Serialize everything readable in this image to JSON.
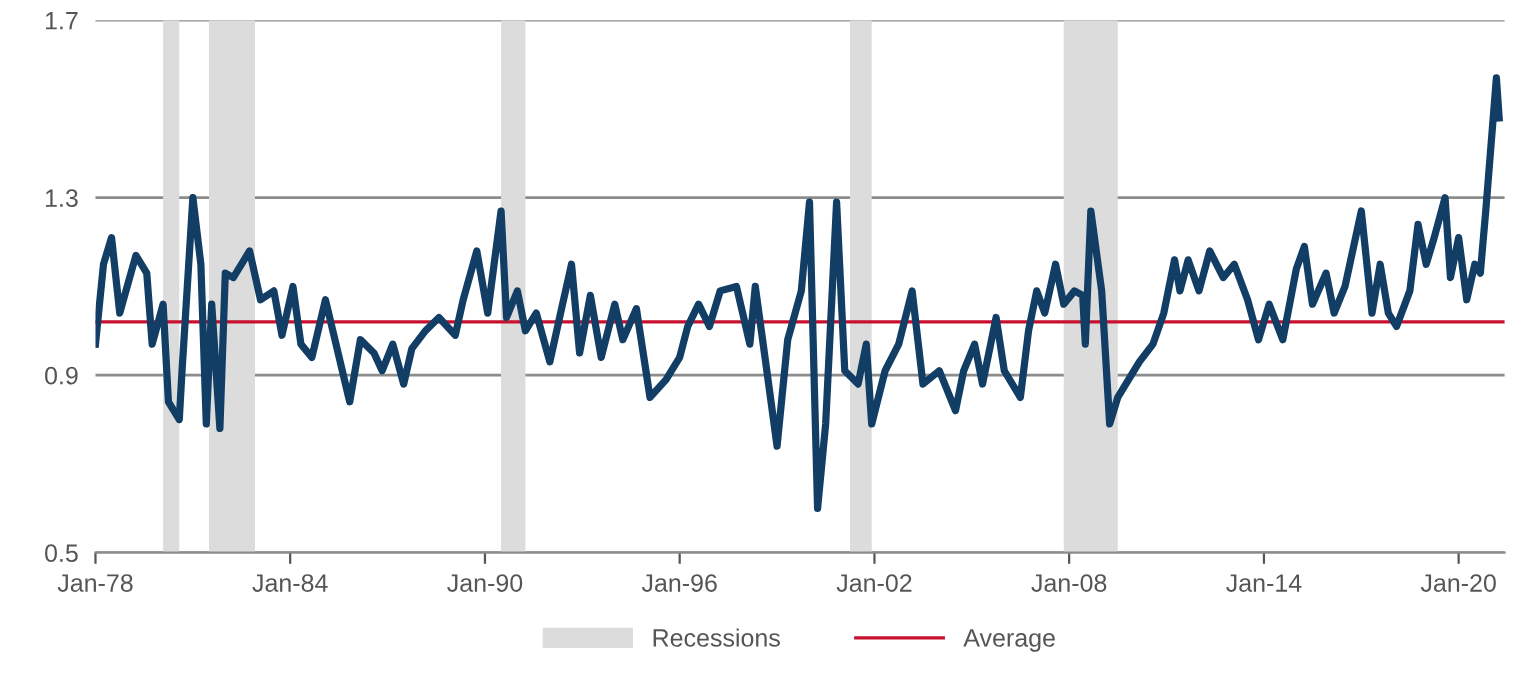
{
  "chart_data": {
    "type": "line",
    "x": [
      "1978-01",
      "1978-04",
      "1978-07",
      "1978-10",
      "1979-04",
      "1979-08",
      "1979-10",
      "1980-02",
      "1980-04",
      "1980-08",
      "1980-09",
      "1981-01",
      "1981-04",
      "1981-06",
      "1981-08",
      "1981-11",
      "1982-01",
      "1982-04",
      "1982-10",
      "1983-02",
      "1983-07",
      "1983-10",
      "1984-02",
      "1984-05",
      "1984-09",
      "1985-02",
      "1985-11",
      "1986-03",
      "1986-08",
      "1986-11",
      "1987-03",
      "1987-07",
      "1987-10",
      "1988-03",
      "1988-08",
      "1989-02",
      "1989-05",
      "1989-10",
      "1990-02",
      "1990-07",
      "1990-09",
      "1991-01",
      "1991-04",
      "1991-08",
      "1992-01",
      "1992-05",
      "1992-09",
      "1992-12",
      "1993-04",
      "1993-08",
      "1994-01",
      "1994-04",
      "1994-09",
      "1995-02",
      "1995-08",
      "1996-01",
      "1996-04",
      "1996-08",
      "1996-12",
      "1997-04",
      "1997-10",
      "1998-03",
      "1998-05",
      "1998-09",
      "1999-01",
      "1999-05",
      "1999-10",
      "2000-01",
      "2000-04",
      "2000-07",
      "2000-11",
      "2001-02",
      "2001-07",
      "2001-10",
      "2001-12",
      "2002-05",
      "2002-10",
      "2003-03",
      "2003-07",
      "2004-01",
      "2004-07",
      "2004-10",
      "2005-02",
      "2005-05",
      "2005-10",
      "2006-01",
      "2006-07",
      "2006-10",
      "2007-01",
      "2007-04",
      "2007-08",
      "2007-11",
      "2008-03",
      "2008-06",
      "2008-07",
      "2008-09",
      "2009-01",
      "2009-04",
      "2009-07",
      "2010-03",
      "2010-08",
      "2010-12",
      "2011-04",
      "2011-06",
      "2011-09",
      "2012-01",
      "2012-05",
      "2012-10",
      "2013-02",
      "2013-07",
      "2013-11",
      "2014-03",
      "2014-08",
      "2015-01",
      "2015-04",
      "2015-07",
      "2015-12",
      "2016-03",
      "2016-07",
      "2017-01",
      "2017-05",
      "2017-08",
      "2017-11",
      "2018-02",
      "2018-07",
      "2018-10",
      "2019-01",
      "2019-04",
      "2019-08",
      "2019-10",
      "2020-01",
      "2020-04",
      "2020-07",
      "2020-09",
      "2020-11",
      "2021-03",
      "2021-04"
    ],
    "series": [
      {
        "color": "#123e66",
        "values": [
          0.97,
          1.15,
          1.21,
          1.04,
          1.17,
          1.13,
          0.97,
          1.06,
          0.84,
          0.8,
          0.91,
          1.3,
          1.15,
          0.79,
          1.06,
          0.78,
          1.13,
          1.12,
          1.18,
          1.07,
          1.09,
          0.99,
          1.1,
          0.97,
          0.94,
          1.07,
          0.84,
          0.98,
          0.95,
          0.91,
          0.97,
          0.88,
          0.96,
          1.0,
          1.03,
          0.99,
          1.07,
          1.18,
          1.04,
          1.27,
          1.03,
          1.09,
          1.0,
          1.04,
          0.93,
          1.04,
          1.15,
          0.95,
          1.08,
          0.94,
          1.06,
          0.98,
          1.05,
          0.85,
          0.89,
          0.94,
          1.01,
          1.06,
          1.01,
          1.09,
          1.1,
          0.97,
          1.1,
          0.92,
          0.74,
          0.98,
          1.09,
          1.29,
          0.6,
          0.79,
          1.29,
          0.91,
          0.88,
          0.97,
          0.79,
          0.91,
          0.97,
          1.09,
          0.88,
          0.91,
          0.82,
          0.91,
          0.97,
          0.88,
          1.03,
          0.91,
          0.85,
          1.0,
          1.09,
          1.04,
          1.15,
          1.06,
          1.09,
          1.08,
          0.97,
          1.27,
          1.09,
          0.79,
          0.85,
          0.93,
          0.97,
          1.04,
          1.16,
          1.09,
          1.16,
          1.09,
          1.18,
          1.12,
          1.15,
          1.07,
          0.98,
          1.06,
          0.98,
          1.14,
          1.19,
          1.06,
          1.13,
          1.04,
          1.1,
          1.27,
          1.04,
          1.15,
          1.04,
          1.01,
          1.09,
          1.24,
          1.15,
          1.21,
          1.3,
          1.12,
          1.21,
          1.07,
          1.15,
          1.13,
          1.27,
          1.57,
          1.48
        ]
      }
    ],
    "xlim": [
      "1978-01",
      "2021-06"
    ],
    "xticks": [
      {
        "value": "1978-01",
        "label": "Jan-78"
      },
      {
        "value": "1984-01",
        "label": "Jan-84"
      },
      {
        "value": "1990-01",
        "label": "Jan-90"
      },
      {
        "value": "1996-01",
        "label": "Jan-96"
      },
      {
        "value": "2002-01",
        "label": "Jan-02"
      },
      {
        "value": "2008-01",
        "label": "Jan-08"
      },
      {
        "value": "2014-01",
        "label": "Jan-14"
      },
      {
        "value": "2020-01",
        "label": "Jan-20"
      }
    ],
    "ylim": [
      0.5,
      1.7
    ],
    "yticks": [
      0.5,
      0.9,
      1.3,
      1.7
    ],
    "grid": "y",
    "legend": "bottom",
    "bands": [
      {
        "axis": "x",
        "from": "1980-02",
        "to": "1980-08",
        "label": "Recessions",
        "color": "#dcdcdc"
      },
      {
        "axis": "x",
        "from": "1981-07",
        "to": "1982-12",
        "color": "#dcdcdc"
      },
      {
        "axis": "x",
        "from": "1990-07",
        "to": "1991-04",
        "color": "#dcdcdc"
      },
      {
        "axis": "x",
        "from": "2001-04",
        "to": "2001-12",
        "color": "#dcdcdc"
      },
      {
        "axis": "x",
        "from": "2007-11",
        "to": "2009-07",
        "color": "#dcdcdc"
      }
    ],
    "ref_lines": [
      {
        "axis": "y",
        "value": 1.02,
        "label": "Average",
        "color": "#c8102e"
      }
    ]
  }
}
